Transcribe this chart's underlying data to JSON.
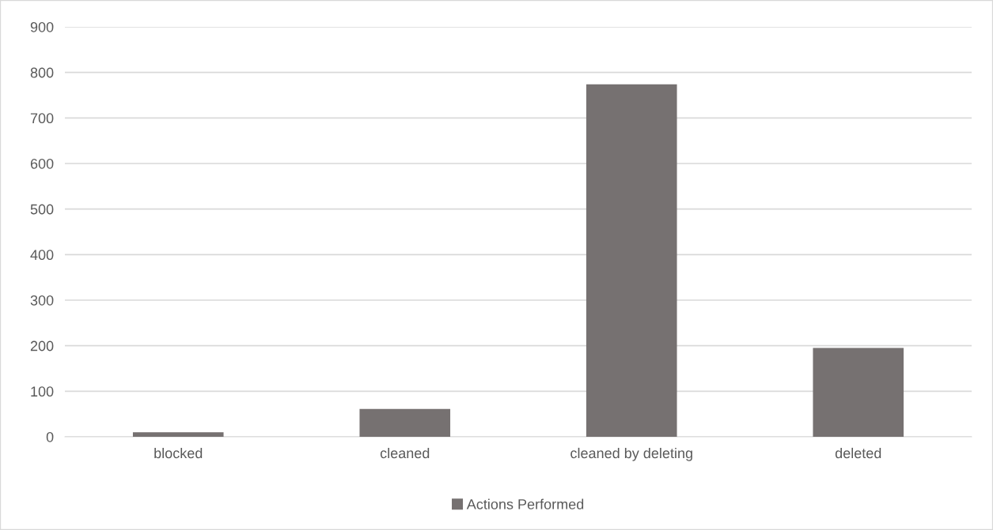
{
  "chart_data": {
    "type": "bar",
    "categories": [
      "blocked",
      "cleaned",
      "cleaned by deleting",
      "deleted"
    ],
    "series": [
      {
        "name": "Actions Performed",
        "color": "#767171",
        "values": [
          10,
          61,
          774,
          195
        ]
      }
    ],
    "ylim": [
      0,
      900
    ],
    "yticks": [
      0,
      100,
      200,
      300,
      400,
      500,
      600,
      700,
      800,
      900
    ],
    "grid": "y",
    "legend": "bottom"
  }
}
